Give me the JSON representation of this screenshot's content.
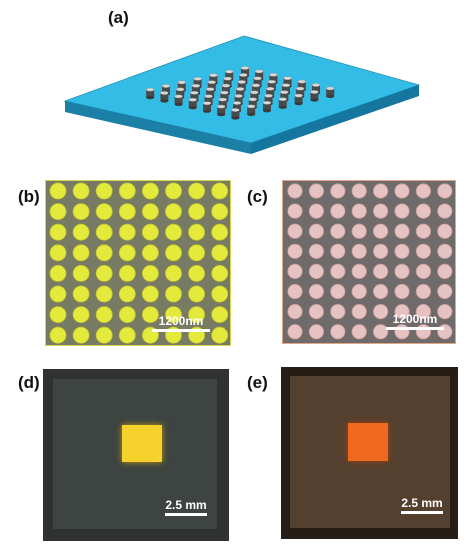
{
  "figure": {
    "panels": [
      {
        "id": "a",
        "label": "(a)",
        "content": "3D schematic of substrate with square array of cylindrical pillars",
        "substrate_color": "#33bde6"
      },
      {
        "id": "b",
        "label": "(b)",
        "content": "SEM micrograph of pillar array, false-colored yellow",
        "scale_bar": "1200nm",
        "tint_color": "#e4ea3c"
      },
      {
        "id": "c",
        "label": "(c)",
        "content": "SEM micrograph of pillar array, false-colored pink",
        "scale_bar": "1200nm",
        "tint_color": "#e7c2c2"
      },
      {
        "id": "d",
        "label": "(d)",
        "content": "Optical photograph of sample with yellow square patch",
        "scale_bar": "2.5 mm",
        "patch_color": "#f5d22c"
      },
      {
        "id": "e",
        "label": "(e)",
        "content": "Optical photograph of sample with orange square patch",
        "scale_bar": "2.5 mm",
        "patch_color": "#ef6a1e"
      }
    ]
  }
}
